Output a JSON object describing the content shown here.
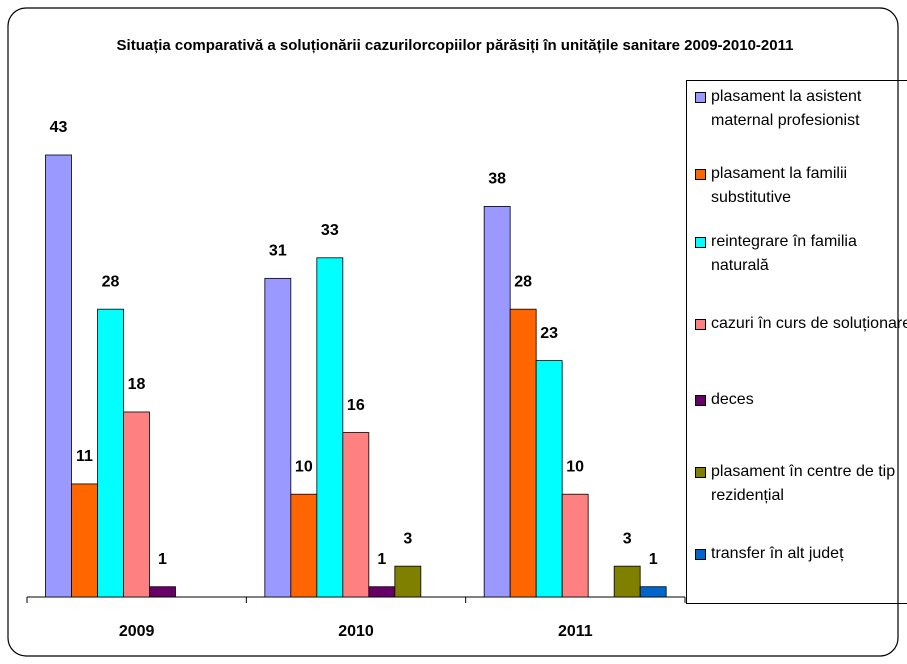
{
  "chart_data": {
    "type": "bar",
    "title": "Situația comparativă a soluționării cazurilorcopiilor părăsiți în unitățile sanitare 2009-2010-2011",
    "categories": [
      "2009",
      "2010",
      "2011"
    ],
    "series": [
      {
        "name": "plasament la asistent maternal profesionist",
        "color": "#9999ff",
        "values": [
          43,
          31,
          38
        ]
      },
      {
        "name": "plasament la familii substitutive",
        "color": "#ff6600",
        "values": [
          11,
          10,
          28
        ]
      },
      {
        "name": "reintegrare în familia naturală",
        "color": "#00ffff",
        "values": [
          28,
          33,
          23
        ]
      },
      {
        "name": "cazuri în curs de soluționare",
        "color": "#ff8080",
        "values": [
          18,
          16,
          10
        ]
      },
      {
        "name": "deces",
        "color": "#660066",
        "values": [
          1,
          1,
          null
        ]
      },
      {
        "name": "plasament în centre de tip rezidențial",
        "color": "#808000",
        "values": [
          null,
          3,
          3
        ]
      },
      {
        "name": "transfer în alt județ",
        "color": "#0066cc",
        "values": [
          null,
          null,
          1
        ]
      }
    ]
  }
}
